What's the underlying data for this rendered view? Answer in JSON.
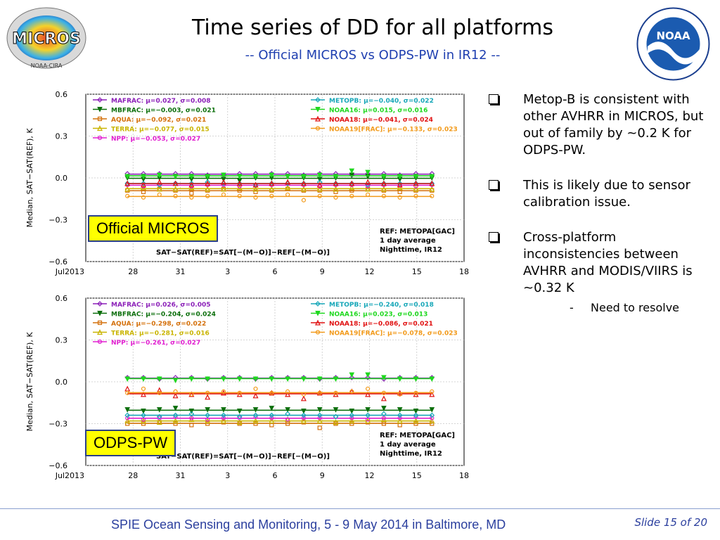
{
  "title": "Time series of DD for all platforms",
  "subtitle": "-- Official MICROS vs ODPS-PW in IR12 --",
  "logos": {
    "left": {
      "text": "MICROS",
      "ring": "NOAA-CIRA"
    },
    "right": {
      "text": "NOAA"
    }
  },
  "bullets": [
    {
      "text": "Metop-B is consistent with other AVHRR in MICROS, but out of family by ~0.2 K for ODPS-PW."
    },
    {
      "text": "This is likely due to sensor calibration issue."
    },
    {
      "text": "Cross-platform inconsistencies between AVHRR and MODIS/VIIRS is ~0.32 K",
      "sub": "Need to resolve"
    }
  ],
  "footer": "SPIE Ocean Sensing and Monitoring, 5 - 9 May 2014 in Baltimore, MD",
  "slide_label": "Slide 15 of 20",
  "colors": {
    "title": "#000000",
    "subtitle": "#1f3fb0",
    "footer": "#2b3f9e",
    "badge": "#ffff00"
  },
  "chart_data": [
    {
      "type": "line",
      "badge": "Official MICROS",
      "ylabel": "Median, SAT−SAT(REF), K",
      "ylim": [
        -0.6,
        0.6
      ],
      "yticks": [
        "0.6",
        "0.3",
        "0.0",
        "−0.3",
        "−0.6"
      ],
      "x_ticklabels": [
        "Jul2013",
        "28",
        "31",
        "3",
        "6",
        "9",
        "12",
        "15",
        "18"
      ],
      "formula": "SAT−SAT(REF)=SAT[−(M−O)]−REF[−(M−O)]",
      "info": [
        "REF: METOPA[GAC]",
        "1 day average",
        "Nighttime, IR12"
      ],
      "grid": true,
      "series": [
        {
          "name": "MAFRAC",
          "label": "MAFRAC: μ=0.027, σ=0.008",
          "color": "#8b1fb8",
          "marker": "diamond",
          "mean": 0.027,
          "values": [
            0.03,
            0.03,
            0.03,
            0.03,
            0.03,
            0.02,
            0.02,
            0.03,
            0.03,
            0.03,
            0.03,
            0.02,
            0.03,
            0.03,
            0.02,
            0.03,
            0.03,
            0.02,
            0.03,
            0.03
          ]
        },
        {
          "name": "MBFRAC",
          "label": "MBFRAC: μ=−0.003, σ=0.021",
          "color": "#0a6e0a",
          "marker": "tridown",
          "mean": -0.003,
          "values": [
            0.0,
            -0.01,
            0.0,
            0.01,
            -0.01,
            0.0,
            -0.01,
            -0.02,
            0.0,
            0.0,
            0.01,
            0.0,
            -0.01,
            0.0,
            0.02,
            0.01,
            0.0,
            -0.01,
            0.0,
            0.0
          ]
        },
        {
          "name": "AQUA",
          "label": "AQUA: μ=−0.092, σ=0.021",
          "color": "#d4700a",
          "marker": "square",
          "mean": -0.092,
          "values": [
            -0.09,
            -0.1,
            -0.08,
            -0.09,
            -0.11,
            -0.09,
            -0.08,
            -0.09,
            -0.1,
            -0.09,
            -0.08,
            -0.09,
            -0.09,
            -0.1,
            -0.09,
            -0.08,
            -0.09,
            -0.1,
            -0.09,
            -0.09
          ]
        },
        {
          "name": "TERRA",
          "label": "TERRA: μ=−0.077, σ=0.015",
          "color": "#c9b400",
          "marker": "triangle",
          "mean": -0.077,
          "values": [
            -0.08,
            -0.07,
            -0.08,
            -0.08,
            -0.07,
            -0.08,
            -0.08,
            -0.07,
            -0.08,
            -0.08,
            -0.07,
            -0.08,
            -0.08,
            -0.08,
            -0.07,
            -0.08,
            -0.08,
            -0.07,
            -0.08,
            -0.08
          ]
        },
        {
          "name": "NPP",
          "label": "NPP: μ=−0.053, σ=0.027",
          "color": "#e01fd0",
          "marker": "circle",
          "mean": -0.053,
          "values": [
            -0.05,
            -0.06,
            -0.05,
            -0.04,
            -0.06,
            -0.05,
            -0.05,
            -0.06,
            -0.05,
            -0.05,
            -0.04,
            -0.05,
            -0.06,
            -0.05,
            -0.05,
            -0.06,
            -0.05,
            -0.05,
            -0.06,
            -0.05
          ]
        },
        {
          "name": "METOPB",
          "label": "METOPB: μ=−0.040, σ=0.022",
          "color": "#17a7b8",
          "marker": "diamond",
          "mean": -0.04,
          "values": [
            -0.04,
            -0.04,
            -0.05,
            -0.04,
            -0.04,
            -0.03,
            -0.04,
            -0.04,
            -0.05,
            -0.04,
            -0.04,
            -0.04,
            -0.03,
            -0.04,
            -0.04,
            -0.05,
            -0.04,
            -0.04,
            -0.04,
            -0.04
          ]
        },
        {
          "name": "NOAA16",
          "label": "NOAA16: μ=0.015, σ=0.016",
          "color": "#1ed81e",
          "marker": "tridown",
          "mean": 0.015,
          "values": [
            0.01,
            0.01,
            0.02,
            0.01,
            0.01,
            0.01,
            0.02,
            0.01,
            0.01,
            0.02,
            0.01,
            0.01,
            0.02,
            0.01,
            0.05,
            0.04,
            0.01,
            0.01,
            0.01,
            0.01
          ]
        },
        {
          "name": "NOAA18",
          "label": "NOAA18: μ=−0.041, σ=0.024",
          "color": "#e01010",
          "marker": "triangle",
          "mean": -0.041,
          "values": [
            -0.04,
            -0.05,
            -0.03,
            -0.04,
            -0.05,
            -0.04,
            -0.03,
            -0.04,
            -0.05,
            -0.04,
            -0.03,
            -0.04,
            -0.05,
            -0.04,
            -0.04,
            -0.03,
            -0.04,
            -0.05,
            -0.04,
            -0.04
          ]
        },
        {
          "name": "NOAA19[FRAC]",
          "label": "NOAA19[FRAC]: μ=−0.133, σ=0.023",
          "color": "#f29a1a",
          "marker": "circle",
          "mean": -0.133,
          "values": [
            -0.13,
            -0.14,
            -0.12,
            -0.13,
            -0.14,
            -0.13,
            -0.12,
            -0.13,
            -0.14,
            -0.13,
            -0.12,
            -0.16,
            -0.13,
            -0.14,
            -0.13,
            -0.12,
            -0.13,
            -0.14,
            -0.13,
            -0.13
          ]
        }
      ]
    },
    {
      "type": "line",
      "badge": "ODPS-PW",
      "ylabel": "Median, SAT−SAT(REF), K",
      "ylim": [
        -0.6,
        0.6
      ],
      "yticks": [
        "0.6",
        "0.3",
        "0.0",
        "−0.3",
        "−0.6"
      ],
      "x_ticklabels": [
        "Jul2013",
        "28",
        "31",
        "3",
        "6",
        "9",
        "12",
        "15",
        "18"
      ],
      "formula": "SAT−SAT(REF)=SAT[−(M−O)]−REF[−(M−O)]",
      "info": [
        "REF: METOPA[GAC]",
        "1 day average",
        "Nighttime, IR12"
      ],
      "grid": true,
      "series": [
        {
          "name": "MAFRAC",
          "label": "MAFRAC: μ=0.026, σ=0.005",
          "color": "#8b1fb8",
          "marker": "diamond",
          "mean": 0.026,
          "values": [
            0.03,
            0.03,
            0.02,
            0.03,
            0.03,
            0.02,
            0.03,
            0.03,
            0.02,
            0.03,
            0.03,
            0.03,
            0.02,
            0.03,
            0.03,
            0.03,
            0.02,
            0.03,
            0.03,
            0.03
          ]
        },
        {
          "name": "MBFRAC",
          "label": "MBFRAC: μ=−0.204, σ=0.024",
          "color": "#0a6e0a",
          "marker": "tridown",
          "mean": -0.204,
          "values": [
            -0.2,
            -0.21,
            -0.2,
            -0.19,
            -0.21,
            -0.2,
            -0.2,
            -0.21,
            -0.2,
            -0.19,
            -0.2,
            -0.21,
            -0.2,
            -0.2,
            -0.21,
            -0.2,
            -0.19,
            -0.2,
            -0.21,
            -0.2
          ]
        },
        {
          "name": "AQUA",
          "label": "AQUA: μ=−0.298, σ=0.022",
          "color": "#d4700a",
          "marker": "square",
          "mean": -0.298,
          "values": [
            -0.3,
            -0.3,
            -0.29,
            -0.3,
            -0.31,
            -0.3,
            -0.29,
            -0.3,
            -0.3,
            -0.31,
            -0.3,
            -0.29,
            -0.33,
            -0.3,
            -0.3,
            -0.29,
            -0.3,
            -0.31,
            -0.3,
            -0.3
          ]
        },
        {
          "name": "TERRA",
          "label": "TERRA: μ=−0.281, σ=0.016",
          "color": "#c9b400",
          "marker": "triangle",
          "mean": -0.281,
          "values": [
            -0.28,
            -0.28,
            -0.29,
            -0.28,
            -0.27,
            -0.28,
            -0.28,
            -0.29,
            -0.28,
            -0.28,
            -0.27,
            -0.28,
            -0.28,
            -0.29,
            -0.28,
            -0.28,
            -0.27,
            -0.28,
            -0.28,
            -0.28
          ]
        },
        {
          "name": "NPP",
          "label": "NPP: μ=−0.261, σ=0.027",
          "color": "#e01fd0",
          "marker": "circle",
          "mean": -0.261,
          "values": [
            -0.26,
            -0.27,
            -0.26,
            -0.25,
            -0.26,
            -0.27,
            -0.26,
            -0.26,
            -0.25,
            -0.26,
            -0.27,
            -0.26,
            -0.26,
            -0.25,
            -0.26,
            -0.27,
            -0.26,
            -0.26,
            -0.25,
            -0.26
          ]
        },
        {
          "name": "METOPB",
          "label": "METOPB: μ=−0.240, σ=0.018",
          "color": "#17a7b8",
          "marker": "diamond",
          "mean": -0.24,
          "values": [
            -0.24,
            -0.24,
            -0.25,
            -0.24,
            -0.23,
            -0.24,
            -0.24,
            -0.25,
            -0.24,
            -0.24,
            -0.23,
            -0.24,
            -0.24,
            -0.25,
            -0.24,
            -0.24,
            -0.23,
            -0.24,
            -0.24,
            -0.24
          ]
        },
        {
          "name": "NOAA16",
          "label": "NOAA16: μ=0.023, σ=0.013",
          "color": "#1ed81e",
          "marker": "tridown",
          "mean": 0.023,
          "values": [
            0.02,
            0.02,
            0.02,
            0.01,
            0.02,
            0.02,
            0.02,
            0.02,
            0.02,
            0.02,
            0.02,
            0.02,
            0.02,
            0.02,
            0.05,
            0.05,
            0.03,
            0.02,
            0.02,
            0.02
          ]
        },
        {
          "name": "NOAA18",
          "label": "NOAA18: μ=−0.086, σ=0.021",
          "color": "#e01010",
          "marker": "triangle",
          "mean": -0.086,
          "values": [
            -0.05,
            -0.09,
            -0.06,
            -0.1,
            -0.09,
            -0.11,
            -0.08,
            -0.09,
            -0.1,
            -0.08,
            -0.09,
            -0.12,
            -0.08,
            -0.09,
            -0.07,
            -0.09,
            -0.12,
            -0.08,
            -0.09,
            -0.09
          ]
        },
        {
          "name": "NOAA19[FRAC]",
          "label": "NOAA19[FRAC]: μ=−0.078, σ=0.023",
          "color": "#f29a1a",
          "marker": "circle",
          "mean": -0.078,
          "values": [
            -0.08,
            -0.05,
            -0.08,
            -0.07,
            -0.09,
            -0.08,
            -0.07,
            -0.08,
            -0.05,
            -0.08,
            -0.07,
            -0.09,
            -0.08,
            -0.08,
            -0.07,
            -0.05,
            -0.08,
            -0.09,
            -0.08,
            -0.07
          ]
        }
      ]
    }
  ]
}
